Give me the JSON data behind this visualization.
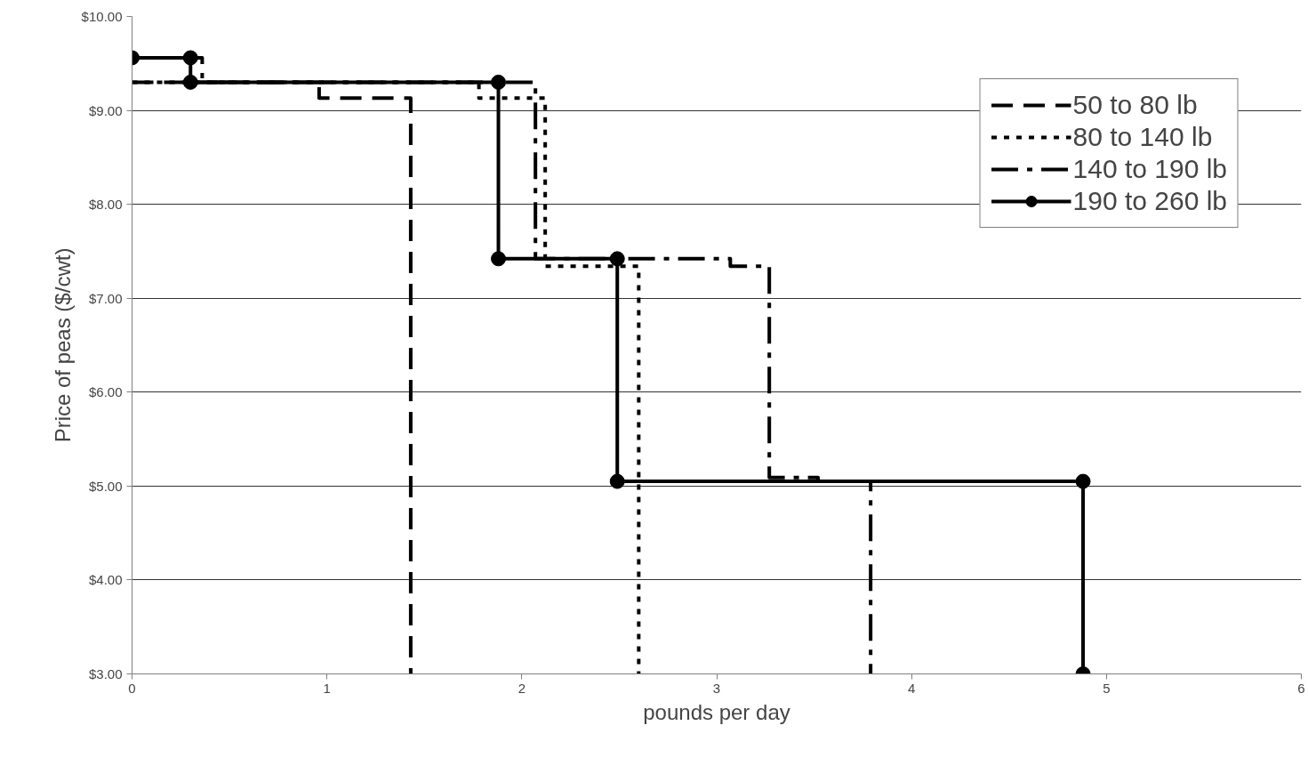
{
  "chart_data": {
    "type": "line",
    "xlabel": "pounds per day",
    "ylabel": "Price of peas ($/cwt)",
    "xlim": [
      0,
      6
    ],
    "xticks": [
      0,
      1,
      2,
      3,
      4,
      5,
      6
    ],
    "ylim": [
      3,
      10
    ],
    "yticks": [
      {
        "value": 3,
        "label": "$3.00"
      },
      {
        "value": 4,
        "label": "$4.00"
      },
      {
        "value": 5,
        "label": "$5.00"
      },
      {
        "value": 6,
        "label": "$6.00"
      },
      {
        "value": 7,
        "label": "$7.00"
      },
      {
        "value": 8,
        "label": "$8.00"
      },
      {
        "value": 9,
        "label": "$9.00"
      },
      {
        "value": 10,
        "label": "$10.00"
      }
    ],
    "grid": "y",
    "legend": "top right",
    "marker": "none",
    "series": [
      {
        "name": "50 to 80 lb",
        "color": "#000000",
        "line_style": "dashed",
        "x": [
          0,
          0.96,
          0.96,
          1.43,
          1.43
        ],
        "values": [
          9.3,
          9.3,
          9.13,
          9.13,
          3
        ]
      },
      {
        "name": "80 to 140 lb",
        "color": "#000000",
        "line_style": "dotted",
        "x": [
          0,
          1.78,
          1.78,
          2.12,
          2.12,
          2.6,
          2.6
        ],
        "values": [
          9.3,
          9.3,
          9.13,
          9.13,
          7.34,
          7.34,
          3
        ]
      },
      {
        "name": "140 to 190 lb",
        "color": "#000000",
        "line_style": "dashdot",
        "x": [
          0,
          0.36,
          0.36,
          2.07,
          2.07,
          3.07,
          3.07,
          3.27,
          3.27,
          3.52,
          3.52,
          3.79,
          3.79
        ],
        "values": [
          9.56,
          9.56,
          9.3,
          9.3,
          7.42,
          7.42,
          7.34,
          7.34,
          5.09,
          5.09,
          5.05,
          5.05,
          3
        ]
      },
      {
        "name": "190 to 260 lb",
        "color": "#000000",
        "line_style": "solid",
        "marker": "circle",
        "x": [
          0,
          0.3,
          0.3,
          1.88,
          1.88,
          2.49,
          2.49,
          4.88,
          4.88
        ],
        "values": [
          9.56,
          9.56,
          9.3,
          9.3,
          7.42,
          7.42,
          5.05,
          5.05,
          3
        ]
      }
    ]
  }
}
